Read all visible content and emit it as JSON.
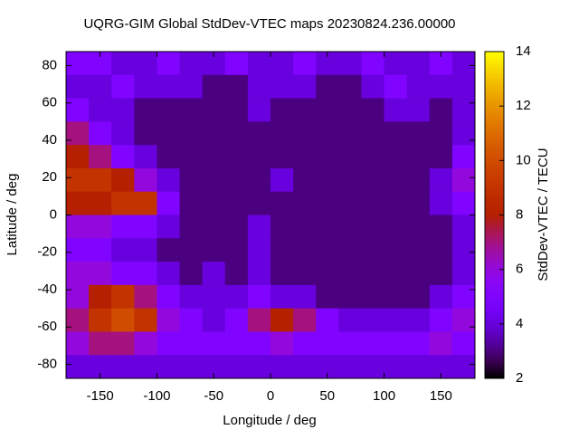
{
  "chart_data": {
    "type": "heatmap",
    "title": "UQRG-GIM Global StdDev-VTEC maps 20230824.236.00000",
    "xlabel": "Longitude / deg",
    "ylabel": "Latitude / deg",
    "cblabel": "StdDev-VTEC / TECU",
    "xlim": [
      -180,
      180
    ],
    "ylim": [
      -87.5,
      87.5
    ],
    "cblim": [
      2,
      14
    ],
    "xticks": [
      -150,
      -100,
      -50,
      0,
      50,
      100,
      150
    ],
    "yticks": [
      -80,
      -60,
      -40,
      -20,
      0,
      20,
      40,
      60,
      80
    ],
    "cbticks": [
      2,
      4,
      6,
      8,
      10,
      12,
      14
    ],
    "palette": "gnuplot",
    "x": [
      -170,
      -150,
      -130,
      -110,
      -90,
      -70,
      -50,
      -30,
      -10,
      10,
      30,
      50,
      70,
      90,
      110,
      130,
      150,
      170
    ],
    "y": [
      81.25,
      68.75,
      56.25,
      43.75,
      31.25,
      18.75,
      6.25,
      -6.25,
      -18.75,
      -31.25,
      -43.75,
      -56.25,
      -68.75,
      -81.25
    ],
    "z": [
      [
        5,
        5,
        4,
        4,
        5,
        4,
        4,
        5,
        4,
        4,
        5,
        4,
        4,
        5,
        4,
        4,
        5,
        4
      ],
      [
        4,
        4,
        5,
        4,
        4,
        4,
        3,
        3,
        4,
        4,
        4,
        3,
        3,
        4,
        5,
        4,
        4,
        4
      ],
      [
        5,
        4,
        4,
        3,
        3,
        3,
        3,
        3,
        4,
        3,
        3,
        3,
        3,
        3,
        4,
        4,
        3,
        4
      ],
      [
        7,
        5,
        4,
        3,
        3,
        3,
        3,
        3,
        3,
        3,
        3,
        3,
        3,
        3,
        3,
        3,
        3,
        4
      ],
      [
        8,
        7,
        5,
        4,
        3,
        3,
        3,
        3,
        3,
        3,
        3,
        3,
        3,
        3,
        3,
        3,
        3,
        5
      ],
      [
        9,
        9,
        8,
        6,
        4,
        3,
        3,
        3,
        3,
        4,
        3,
        3,
        3,
        3,
        3,
        3,
        4,
        6
      ],
      [
        8,
        8,
        9,
        9,
        5,
        3,
        3,
        3,
        3,
        3,
        3,
        3,
        3,
        3,
        3,
        3,
        4,
        5
      ],
      [
        6,
        6,
        5,
        5,
        4,
        3,
        3,
        3,
        4,
        3,
        3,
        3,
        3,
        3,
        3,
        3,
        3,
        4
      ],
      [
        5,
        5,
        4,
        4,
        3,
        3,
        3,
        3,
        4,
        3,
        3,
        3,
        3,
        3,
        3,
        3,
        3,
        4
      ],
      [
        6,
        6,
        5,
        5,
        4,
        3,
        4,
        3,
        4,
        3,
        3,
        3,
        3,
        3,
        3,
        3,
        3,
        4
      ],
      [
        6,
        8,
        9,
        7,
        5,
        4,
        4,
        4,
        5,
        4,
        4,
        3,
        3,
        3,
        3,
        3,
        4,
        5
      ],
      [
        7,
        9,
        10,
        9,
        6,
        5,
        4,
        5,
        7,
        8,
        7,
        5,
        4,
        4,
        4,
        4,
        5,
        6
      ],
      [
        6,
        7,
        7,
        6,
        5,
        5,
        5,
        5,
        5,
        6,
        5,
        5,
        5,
        5,
        5,
        5,
        6,
        5
      ],
      [
        4,
        4,
        4,
        4,
        4,
        4,
        4,
        4,
        4,
        4,
        4,
        4,
        4,
        4,
        4,
        4,
        4,
        4
      ]
    ]
  }
}
